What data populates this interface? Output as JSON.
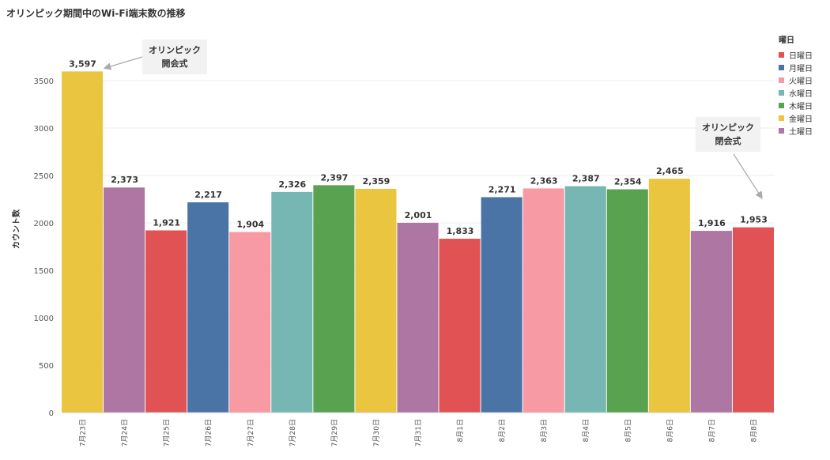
{
  "title": "オリンピック期間中のWi-Fi端末数の推移",
  "legend": {
    "title": "曜日",
    "items": [
      {
        "label": "日曜日",
        "color": "#e05253"
      },
      {
        "label": "月曜日",
        "color": "#4a74a6"
      },
      {
        "label": "火曜日",
        "color": "#f79aa4"
      },
      {
        "label": "水曜日",
        "color": "#76b6b3"
      },
      {
        "label": "木曜日",
        "color": "#59a24f"
      },
      {
        "label": "金曜日",
        "color": "#eac53f"
      },
      {
        "label": "土曜日",
        "color": "#ae76a2"
      }
    ]
  },
  "annotations": {
    "opening": "オリンピック\n開会式",
    "closing": "オリンピック\n閉会式"
  },
  "chart_data": {
    "type": "bar",
    "title": "オリンピック期間中のWi-Fi端末数の推移",
    "ylabel": "カウント数",
    "xlabel": "",
    "ylim": [
      0,
      3700
    ],
    "yticks": [
      0,
      500,
      1000,
      1500,
      2000,
      2500,
      3000,
      3500
    ],
    "grid": true,
    "legend_position": "right",
    "categories": [
      "7月23日",
      "7月24日",
      "7月25日",
      "7月26日",
      "7月27日",
      "7月28日",
      "7月29日",
      "7月30日",
      "7月31日",
      "8月1日",
      "8月2日",
      "8月3日",
      "8月4日",
      "8月5日",
      "8月6日",
      "8月7日",
      "8月8日"
    ],
    "values": [
      3597,
      2373,
      1921,
      2217,
      1904,
      2326,
      2397,
      2359,
      2001,
      1833,
      2271,
      2363,
      2387,
      2354,
      2465,
      1916,
      1953
    ],
    "value_labels": [
      "3,597",
      "2,373",
      "1,921",
      "2,217",
      "1,904",
      "2,326",
      "2,397",
      "2,359",
      "2,001",
      "1,833",
      "2,271",
      "2,363",
      "2,387",
      "2,354",
      "2,465",
      "1,916",
      "1,953"
    ],
    "weekday": [
      "金曜日",
      "土曜日",
      "日曜日",
      "月曜日",
      "火曜日",
      "水曜日",
      "木曜日",
      "金曜日",
      "土曜日",
      "日曜日",
      "月曜日",
      "火曜日",
      "水曜日",
      "木曜日",
      "金曜日",
      "土曜日",
      "日曜日"
    ]
  }
}
